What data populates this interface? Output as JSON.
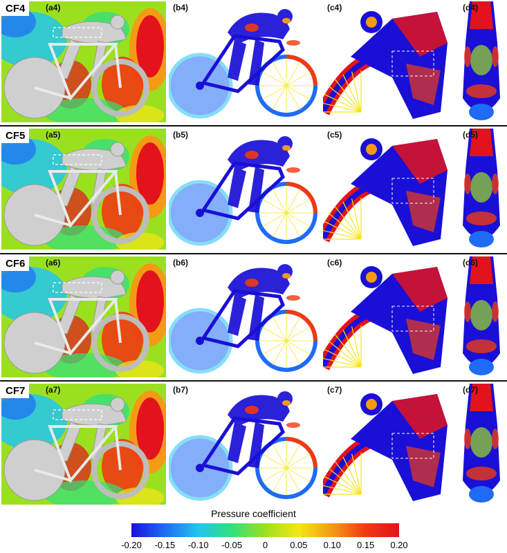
{
  "rows": [
    {
      "case": "CF4",
      "labels": [
        "(a4)",
        "(b4)",
        "(c4)",
        "(d4)"
      ]
    },
    {
      "case": "CF5",
      "labels": [
        "(a5)",
        "(b5)",
        "(c5)",
        "(d5)"
      ]
    },
    {
      "case": "CF6",
      "labels": [
        "(a6)",
        "(b6)",
        "(c6)",
        "(d6)"
      ]
    },
    {
      "case": "CF7",
      "labels": [
        "(a7)",
        "(b7)",
        "(c7)",
        "(d7)"
      ]
    }
  ],
  "colorbar": {
    "title": "Pressure coefficient",
    "ticks": [
      "-0.20",
      "-0.15",
      "-0.10",
      "-0.05",
      "0",
      "0.05",
      "0.10",
      "0.15",
      "0.20"
    ],
    "range": [
      -0.2,
      0.2
    ],
    "colors": [
      "#1a0fd6",
      "#1e6cf5",
      "#23c4f0",
      "#32e07c",
      "#9be01e",
      "#f5e617",
      "#f59a14",
      "#ef3a12",
      "#e3131d"
    ]
  }
}
